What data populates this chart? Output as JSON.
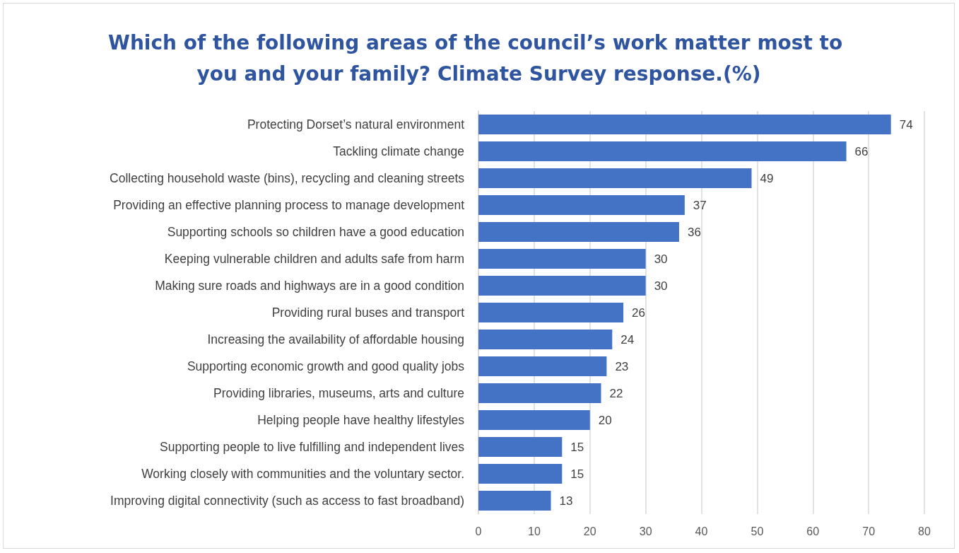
{
  "chart_data": {
    "type": "bar",
    "orientation": "horizontal",
    "title": "Which of the following areas of the council’s work matter most to you and your family? Climate Survey response.(%)",
    "categories": [
      "Protecting Dorset’s natural environment",
      "Tackling climate change",
      "Collecting household waste (bins), recycling and cleaning streets",
      "Providing an effective planning process to manage development",
      "Supporting schools so children have a good education",
      "Keeping vulnerable children and adults safe from harm",
      "Making sure roads and highways are in a good condition",
      "Providing rural buses and transport",
      "Increasing the availability of affordable housing",
      "Supporting economic growth and good quality jobs",
      "Providing libraries, museums, arts and culture",
      "Helping people have healthy lifestyles",
      "Supporting people to live fulfilling and independent lives",
      "Working closely with communities and the voluntary sector.",
      "Improving digital connectivity (such as access to fast broadband)"
    ],
    "values": [
      74,
      66,
      49,
      37,
      36,
      30,
      30,
      26,
      24,
      23,
      22,
      20,
      15,
      15,
      13
    ],
    "color": "#4472c4",
    "xlim": [
      0,
      80
    ],
    "xticks": [
      0,
      10,
      20,
      30,
      40,
      50,
      60,
      70,
      80
    ],
    "grid": "x",
    "data_labels": true
  }
}
